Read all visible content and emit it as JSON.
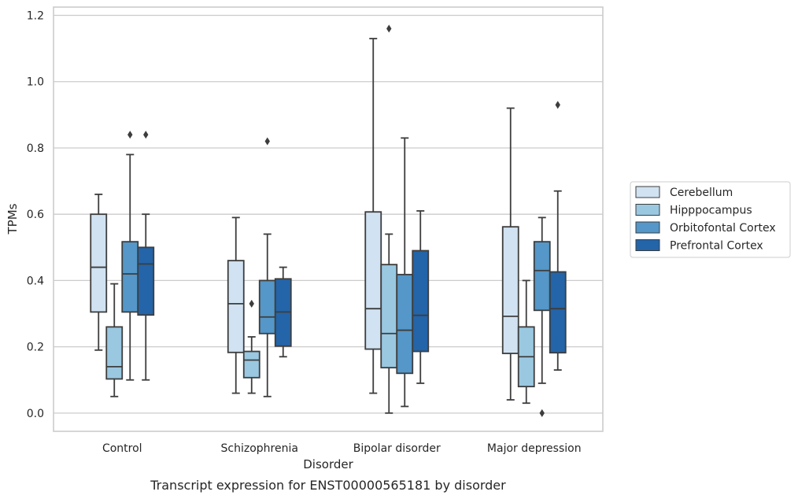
{
  "chart_data": {
    "type": "box",
    "caption": "Transcript expression for ENST00000565181 by disorder",
    "xlabel": "Disorder",
    "ylabel": "TPMs",
    "ylim": [
      -0.055,
      1.225
    ],
    "yticks": [
      0.0,
      0.2,
      0.4,
      0.6,
      0.8,
      1.0,
      1.2
    ],
    "ytick_labels": [
      "0.0",
      "0.2",
      "0.4",
      "0.6",
      "0.8",
      "1.0",
      "1.2"
    ],
    "grid": "horizontal",
    "legend_position": "right",
    "categories": [
      "Control",
      "Schizophrenia",
      "Bipolar disorder",
      "Major depression"
    ],
    "series": [
      {
        "name": "Cerebellum",
        "color": "#d1e2f2",
        "boxes": [
          {
            "min": 0.19,
            "q1": 0.305,
            "median": 0.44,
            "q3": 0.6,
            "max": 0.66,
            "outliers": []
          },
          {
            "min": 0.06,
            "q1": 0.183,
            "median": 0.33,
            "q3": 0.46,
            "max": 0.59,
            "outliers": []
          },
          {
            "min": 0.06,
            "q1": 0.193,
            "median": 0.315,
            "q3": 0.607,
            "max": 1.13,
            "outliers": []
          },
          {
            "min": 0.04,
            "q1": 0.18,
            "median": 0.292,
            "q3": 0.562,
            "max": 0.92,
            "outliers": []
          }
        ]
      },
      {
        "name": "Hipppocampus",
        "color": "#9ac8e1",
        "boxes": [
          {
            "min": 0.05,
            "q1": 0.103,
            "median": 0.14,
            "q3": 0.26,
            "max": 0.39,
            "outliers": []
          },
          {
            "min": 0.06,
            "q1": 0.107,
            "median": 0.16,
            "q3": 0.186,
            "max": 0.23,
            "outliers": [
              0.33
            ]
          },
          {
            "min": 0.0,
            "q1": 0.137,
            "median": 0.24,
            "q3": 0.448,
            "max": 0.54,
            "outliers": [
              1.16
            ]
          },
          {
            "min": 0.03,
            "q1": 0.08,
            "median": 0.17,
            "q3": 0.26,
            "max": 0.4,
            "outliers": []
          }
        ]
      },
      {
        "name": "Orbitofontal Cortex",
        "color": "#5497c8",
        "boxes": [
          {
            "min": 0.1,
            "q1": 0.305,
            "median": 0.42,
            "q3": 0.517,
            "max": 0.78,
            "outliers": [
              0.84
            ]
          },
          {
            "min": 0.05,
            "q1": 0.24,
            "median": 0.29,
            "q3": 0.4,
            "max": 0.54,
            "outliers": [
              0.82
            ]
          },
          {
            "min": 0.02,
            "q1": 0.12,
            "median": 0.25,
            "q3": 0.418,
            "max": 0.83,
            "outliers": []
          },
          {
            "min": 0.09,
            "q1": 0.31,
            "median": 0.43,
            "q3": 0.517,
            "max": 0.59,
            "outliers": [
              0.0
            ]
          }
        ]
      },
      {
        "name": "Prefrontal Cortex",
        "color": "#2464a8",
        "boxes": [
          {
            "min": 0.1,
            "q1": 0.296,
            "median": 0.45,
            "q3": 0.5,
            "max": 0.6,
            "outliers": [
              0.84
            ]
          },
          {
            "min": 0.17,
            "q1": 0.202,
            "median": 0.305,
            "q3": 0.405,
            "max": 0.44,
            "outliers": []
          },
          {
            "min": 0.09,
            "q1": 0.186,
            "median": 0.295,
            "q3": 0.49,
            "max": 0.61,
            "outliers": []
          },
          {
            "min": 0.13,
            "q1": 0.182,
            "median": 0.315,
            "q3": 0.426,
            "max": 0.67,
            "outliers": [
              0.93
            ]
          }
        ]
      }
    ]
  }
}
